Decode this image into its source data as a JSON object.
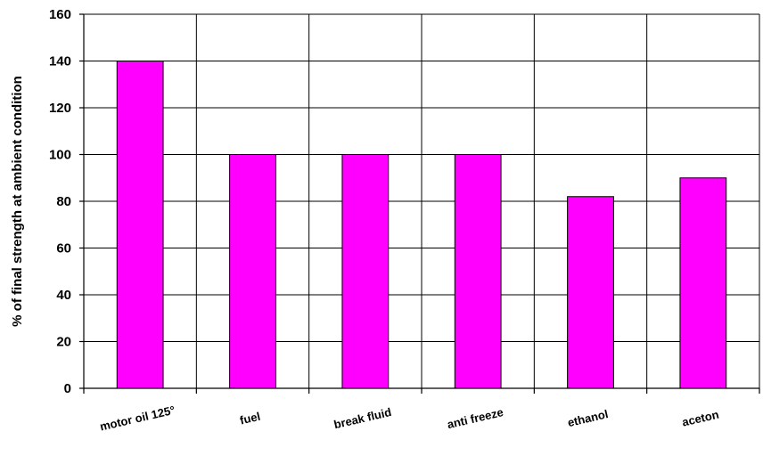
{
  "chart_data": {
    "type": "bar",
    "categories": [
      "motor oil 125°",
      "fuel",
      "break fluid",
      "anti freeze",
      "ethanol",
      "aceton"
    ],
    "values": [
      140,
      100,
      100,
      100,
      82,
      90
    ],
    "title": "",
    "xlabel": "",
    "ylabel": "% of final strength at ambient condition",
    "ylim": [
      0,
      160
    ],
    "yticks": [
      0,
      20,
      40,
      60,
      80,
      100,
      120,
      140,
      160
    ],
    "grid": true,
    "bar_color": "#ff00ff",
    "legend": "none"
  }
}
